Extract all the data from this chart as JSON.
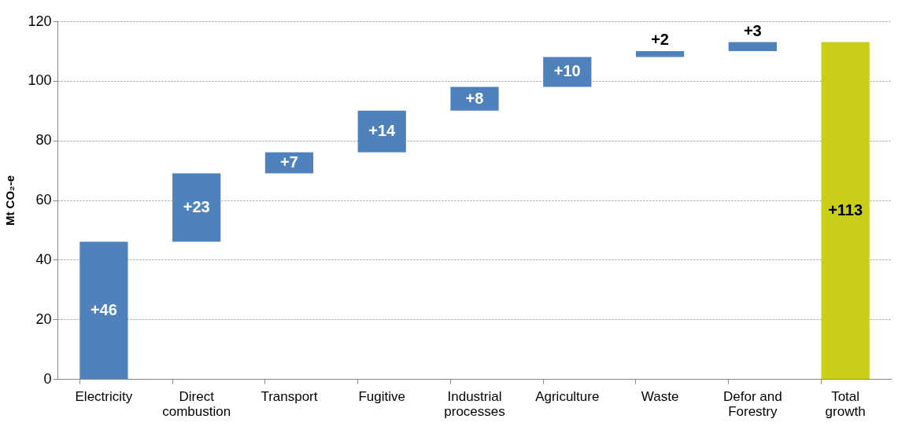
{
  "chart_data": {
    "type": "bar",
    "ylabel": "Mt CO₂-e",
    "categories": [
      "Electricity",
      "Direct combustion",
      "Transport",
      "Fugitive",
      "Industrial processes",
      "Agriculture",
      "Waste",
      "Defor and Forestry",
      "Total growth"
    ],
    "values": [
      46,
      23,
      7,
      14,
      8,
      10,
      2,
      3,
      113
    ],
    "base": [
      0,
      46,
      69,
      76,
      90,
      98,
      108,
      110,
      0
    ],
    "colors": [
      "#4f81bd",
      "#4f81bd",
      "#4f81bd",
      "#4f81bd",
      "#4f81bd",
      "#4f81bd",
      "#4f81bd",
      "#4f81bd",
      "#c9cf19"
    ],
    "value_labels": [
      "+46",
      "+23",
      "+7",
      "+14",
      "+8",
      "+10",
      "+2",
      "+3",
      "+113"
    ],
    "ylim": [
      0,
      120
    ],
    "yticks": [
      0,
      20,
      40,
      60,
      80,
      100,
      120
    ],
    "grid": "y"
  }
}
